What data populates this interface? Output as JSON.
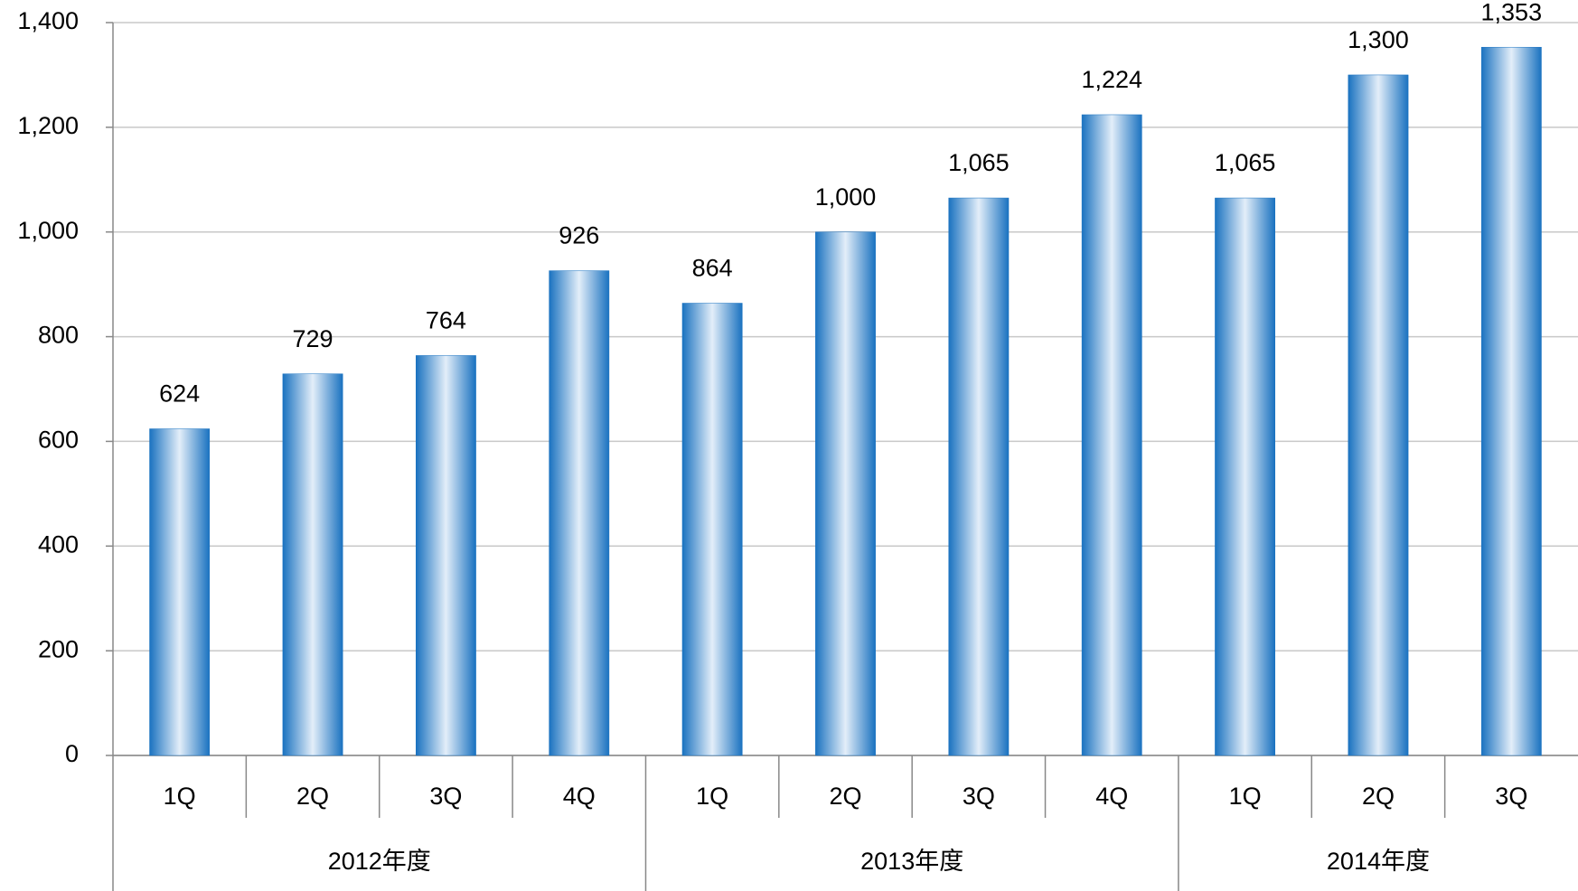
{
  "chart_data": {
    "type": "bar",
    "groups": [
      {
        "label": "2012年度",
        "categories": [
          "1Q",
          "2Q",
          "3Q",
          "4Q"
        ]
      },
      {
        "label": "2013年度",
        "categories": [
          "1Q",
          "2Q",
          "3Q",
          "4Q"
        ]
      },
      {
        "label": "2014年度",
        "categories": [
          "1Q",
          "2Q",
          "3Q"
        ]
      }
    ],
    "values": [
      624,
      729,
      764,
      926,
      864,
      1000,
      1065,
      1224,
      1065,
      1300,
      1353
    ],
    "value_labels": [
      "624",
      "729",
      "764",
      "926",
      "864",
      "1,000",
      "1,065",
      "1,224",
      "1,065",
      "1,300",
      "1,353"
    ],
    "color": "#1a72c0",
    "ylim": [
      0,
      1400
    ],
    "yticks": [
      0,
      200,
      400,
      600,
      800,
      {
        "value": 1000,
        "label": "1,000"
      },
      {
        "value": 1200,
        "label": "1,200"
      },
      {
        "value": 1400,
        "label": "1,400"
      }
    ],
    "grid": true
  }
}
